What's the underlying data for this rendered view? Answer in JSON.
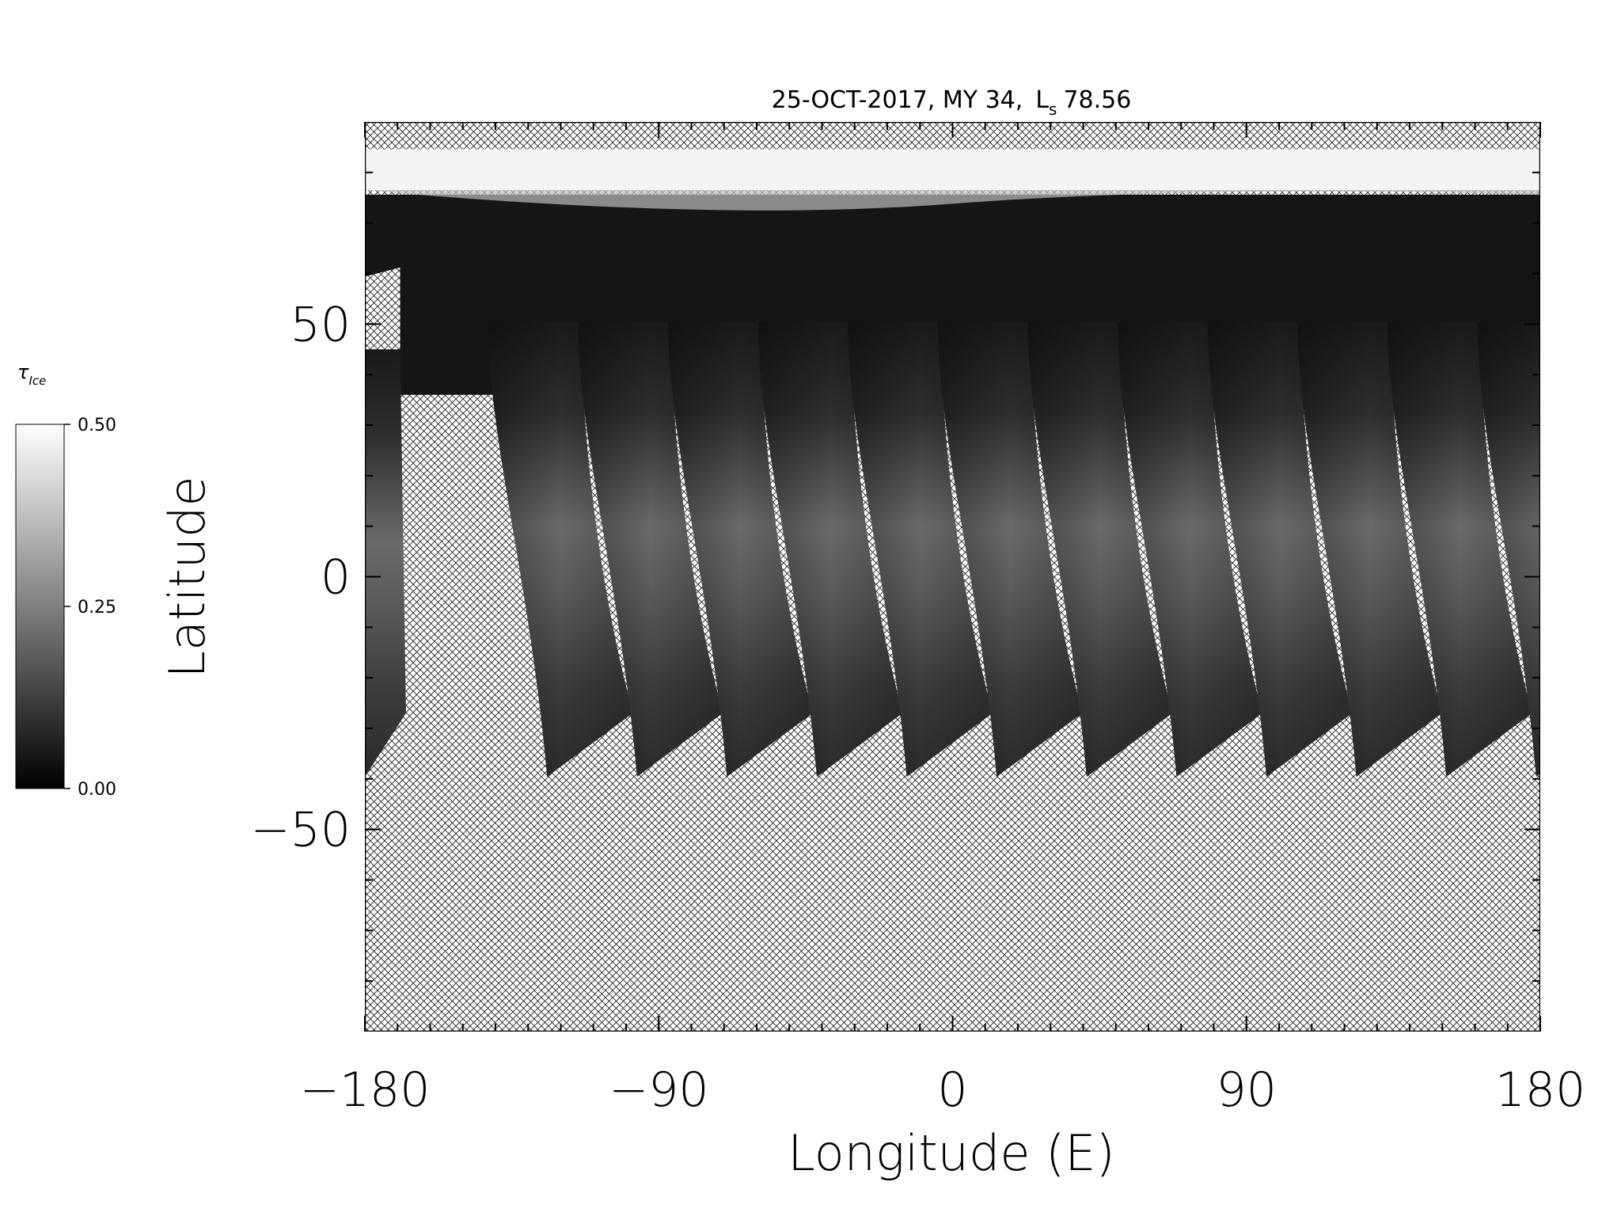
{
  "chart_data": {
    "type": "map",
    "title": "25-OCT-2017, MY 34,",
    "title_ls_symbol": "L",
    "title_ls_subscript": "s",
    "title_ls_value": "78.56",
    "xlabel": "Longitude (E)",
    "ylabel": "Latitude",
    "xlim": [
      -180,
      180
    ],
    "ylim": [
      -90,
      90
    ],
    "xticks": [
      {
        "value": -180,
        "label": "−180"
      },
      {
        "value": -90,
        "label": "−90"
      },
      0,
      90,
      180
    ],
    "yticks": [
      {
        "value": -50,
        "label": "−50"
      },
      0,
      50
    ],
    "minor_tick_step": 10,
    "colorbar": {
      "label_symbol": "τ",
      "label_subscript": "Ice",
      "lim": [
        0,
        0.5
      ],
      "ticks": [
        {
          "value": 0,
          "label": "0.00"
        },
        {
          "value": 0.25,
          "label": "0.25"
        },
        {
          "value": 0.5,
          "label": "0.50"
        }
      ],
      "colors": [
        "#000000",
        "#ffffff"
      ]
    }
  }
}
